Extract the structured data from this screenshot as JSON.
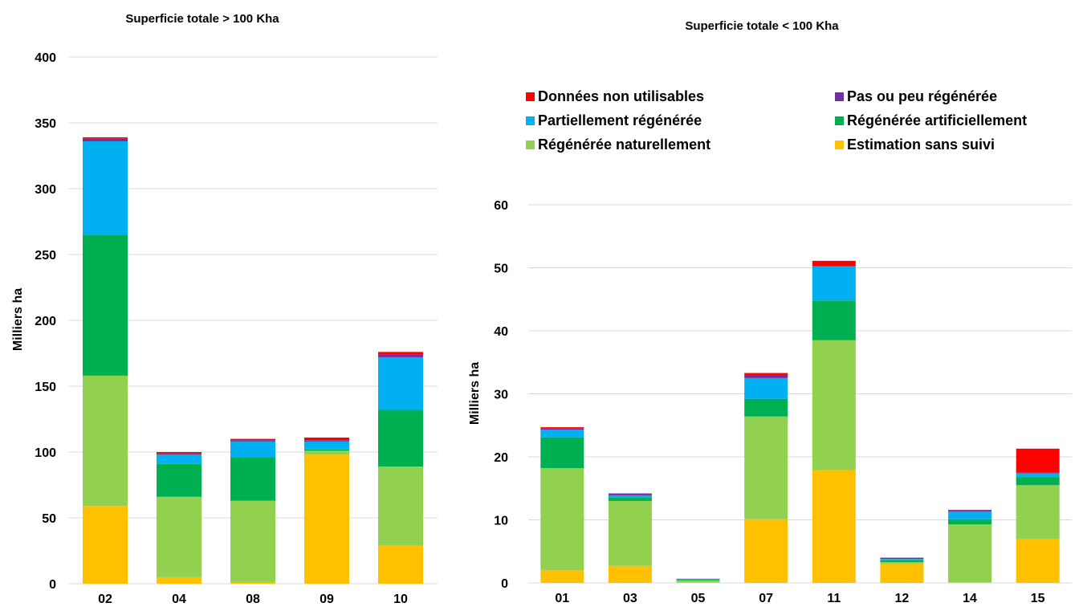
{
  "colors": {
    "Données non utilisables": "#ff0000",
    "Pas ou peu régénérée": "#7030a0",
    "Partiellement régénérée": "#00b0f0",
    "Régénérée artificiellement": "#00b050",
    "Régénérée naturellement": "#92d050",
    "Estimation sans suivi": "#ffc000"
  },
  "legend": [
    "Données non utilisables",
    "Pas ou peu régénérée",
    "Partiellement régénérée",
    "Régénérée artificiellement",
    "Régénérée naturellement",
    "Estimation sans suivi"
  ],
  "chart_data": [
    {
      "type": "bar",
      "stacked": true,
      "title": "Superficie totale > 100 Kha",
      "ylabel": "Milliers ha",
      "ylim": [
        0,
        400
      ],
      "yticks": [
        0,
        50,
        100,
        150,
        200,
        250,
        300,
        350,
        400
      ],
      "grid": true,
      "categories": [
        "02",
        "04",
        "08",
        "09",
        "10"
      ],
      "series": [
        {
          "name": "Estimation sans suivi",
          "values": [
            59,
            5,
            1,
            98,
            29
          ]
        },
        {
          "name": "Régénérée naturellement",
          "values": [
            99,
            61,
            62,
            3,
            60
          ]
        },
        {
          "name": "Régénérée artificiellement",
          "values": [
            107,
            25,
            33,
            1,
            43
          ]
        },
        {
          "name": "Partiellement régénérée",
          "values": [
            71,
            7,
            12,
            6,
            40
          ]
        },
        {
          "name": "Pas ou peu régénérée",
          "values": [
            2,
            1,
            1,
            1,
            2
          ]
        },
        {
          "name": "Données non utilisables",
          "values": [
            1,
            1,
            1,
            2,
            2
          ]
        }
      ]
    },
    {
      "type": "bar",
      "stacked": true,
      "title": "Superficie totale < 100 Kha",
      "ylabel": "Milliers ha",
      "ylim": [
        0,
        60
      ],
      "yticks": [
        0,
        10,
        20,
        30,
        40,
        50,
        60
      ],
      "grid": true,
      "legend_position": "top",
      "categories": [
        "01",
        "03",
        "05",
        "07",
        "11",
        "12",
        "14",
        "15"
      ],
      "series": [
        {
          "name": "Estimation sans suivi",
          "values": [
            2.0,
            2.7,
            0.1,
            10.1,
            17.9,
            3.0,
            0.1,
            7.0
          ]
        },
        {
          "name": "Régénérée naturellement",
          "values": [
            16.2,
            10.3,
            0.3,
            16.3,
            20.6,
            0.3,
            9.2,
            8.5
          ]
        },
        {
          "name": "Régénérée artificiellement",
          "values": [
            4.9,
            0.6,
            0.2,
            2.8,
            6.3,
            0.3,
            0.8,
            1.3
          ]
        },
        {
          "name": "Partiellement régénérée",
          "values": [
            1.2,
            0.3,
            0.05,
            3.3,
            5.4,
            0.2,
            1.2,
            0.6
          ]
        },
        {
          "name": "Pas ou peu régénérée",
          "values": [
            0.2,
            0.3,
            0.02,
            0.5,
            0.1,
            0.2,
            0.2,
            0.1
          ]
        },
        {
          "name": "Données non utilisables",
          "values": [
            0.2,
            0.0,
            0.0,
            0.3,
            0.8,
            0.0,
            0.1,
            3.8
          ]
        }
      ]
    }
  ]
}
